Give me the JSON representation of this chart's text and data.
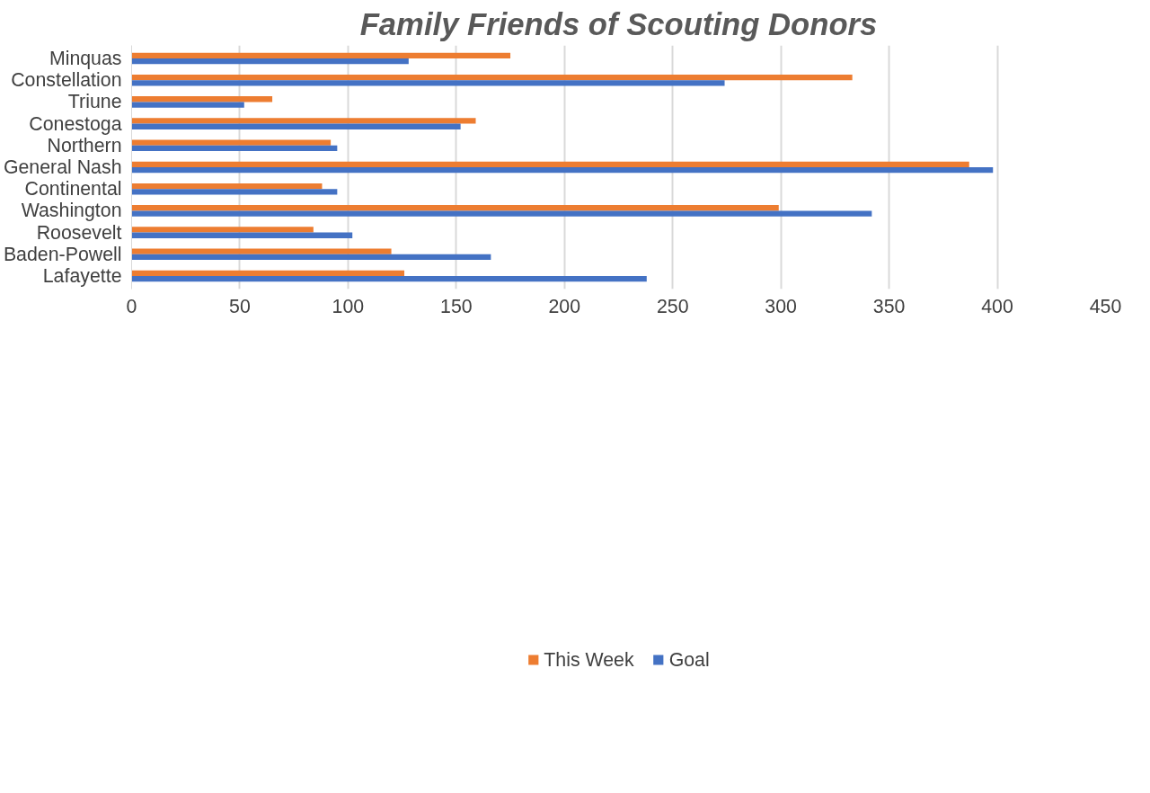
{
  "chart_data": {
    "type": "bar",
    "orientation": "horizontal",
    "title": "Family Friends of Scouting Donors",
    "categories": [
      "Minquas",
      "Constellation",
      "Triune",
      "Conestoga",
      "Northern",
      "General Nash",
      "Continental",
      "Washington",
      "Roosevelt",
      "Baden-Powell",
      "Lafayette"
    ],
    "series": [
      {
        "name": "This Week",
        "color": "#ed7d31",
        "values": [
          175,
          333,
          65,
          159,
          92,
          387,
          88,
          299,
          84,
          120,
          126
        ]
      },
      {
        "name": "Goal",
        "color": "#4472c4",
        "values": [
          128,
          274,
          52,
          152,
          95,
          398,
          95,
          342,
          102,
          166,
          238
        ]
      }
    ],
    "xlim": [
      0,
      450
    ],
    "xticks": [
      0,
      50,
      100,
      150,
      200,
      250,
      300,
      350,
      400,
      450
    ],
    "grid": "x",
    "legend": "bottom"
  }
}
